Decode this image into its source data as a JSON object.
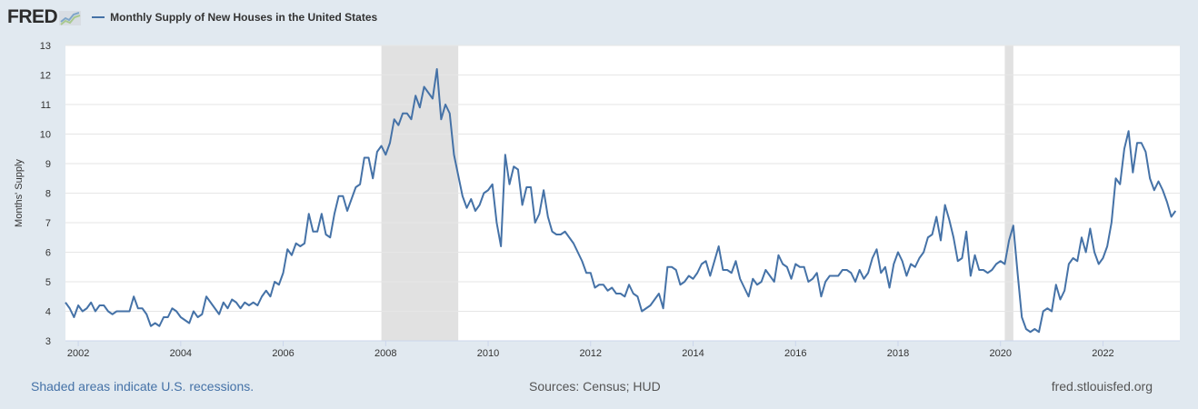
{
  "header": {
    "logo_text": "FRED",
    "legend_label": "Monthly Supply of New Houses in the United States"
  },
  "footer": {
    "recession_note": "Shaded areas indicate U.S. recessions.",
    "sources": "Sources: Census; HUD",
    "site": "fred.stlouisfed.org"
  },
  "colors": {
    "series": "#4572a7",
    "recession": "#e1e1e1",
    "background": "#e1e9f0",
    "plot_bg": "#ffffff",
    "grid": "#e6e6e6"
  },
  "chart_data": {
    "type": "line",
    "title": "",
    "xlabel": "",
    "ylabel": "Months' Supply",
    "xlim": [
      "2001-10-01",
      "2023-07-01"
    ],
    "ylim": [
      3,
      13
    ],
    "y_ticks": [
      3,
      4,
      5,
      6,
      7,
      8,
      9,
      10,
      11,
      12,
      13
    ],
    "x_ticks": [
      "2002",
      "2004",
      "2006",
      "2008",
      "2010",
      "2012",
      "2014",
      "2016",
      "2018",
      "2020",
      "2022"
    ],
    "grid": true,
    "legend_position": "top-left",
    "recessions": [
      {
        "start": "2007-12-01",
        "end": "2009-06-01"
      },
      {
        "start": "2020-02-01",
        "end": "2020-04-01"
      }
    ],
    "series": [
      {
        "name": "Monthly Supply of New Houses in the United States",
        "start": "2001-10-01",
        "frequency": "monthly",
        "values": [
          4.3,
          4.1,
          3.8,
          4.2,
          4.0,
          4.1,
          4.3,
          4.0,
          4.2,
          4.2,
          4.0,
          3.9,
          4.0,
          4.0,
          4.0,
          4.0,
          4.5,
          4.1,
          4.1,
          3.9,
          3.5,
          3.6,
          3.5,
          3.8,
          3.8,
          4.1,
          4.0,
          3.8,
          3.7,
          3.6,
          4.0,
          3.8,
          3.9,
          4.5,
          4.3,
          4.1,
          3.9,
          4.3,
          4.1,
          4.4,
          4.3,
          4.1,
          4.3,
          4.2,
          4.3,
          4.2,
          4.5,
          4.7,
          4.5,
          5.0,
          4.9,
          5.3,
          6.1,
          5.9,
          6.3,
          6.2,
          6.3,
          7.3,
          6.7,
          6.7,
          7.3,
          6.6,
          6.5,
          7.3,
          7.9,
          7.9,
          7.4,
          7.8,
          8.2,
          8.3,
          9.2,
          9.2,
          8.5,
          9.4,
          9.6,
          9.3,
          9.7,
          10.5,
          10.3,
          10.7,
          10.7,
          10.5,
          11.3,
          10.9,
          11.6,
          11.4,
          11.2,
          12.2,
          10.5,
          11.0,
          10.7,
          9.3,
          8.6,
          7.9,
          7.5,
          7.8,
          7.4,
          7.6,
          8.0,
          8.1,
          8.3,
          7.0,
          6.2,
          9.3,
          8.3,
          8.9,
          8.8,
          7.6,
          8.2,
          8.2,
          7.0,
          7.3,
          8.1,
          7.2,
          6.7,
          6.6,
          6.6,
          6.7,
          6.5,
          6.3,
          6.0,
          5.7,
          5.3,
          5.3,
          4.8,
          4.9,
          4.9,
          4.7,
          4.8,
          4.6,
          4.6,
          4.5,
          4.9,
          4.6,
          4.5,
          4.0,
          4.1,
          4.2,
          4.4,
          4.6,
          4.1,
          5.5,
          5.5,
          5.4,
          4.9,
          5.0,
          5.2,
          5.1,
          5.3,
          5.6,
          5.7,
          5.2,
          5.7,
          6.2,
          5.4,
          5.4,
          5.3,
          5.7,
          5.1,
          4.8,
          4.5,
          5.1,
          4.9,
          5.0,
          5.4,
          5.2,
          5.0,
          5.9,
          5.6,
          5.5,
          5.1,
          5.6,
          5.5,
          5.5,
          5.0,
          5.1,
          5.3,
          4.5,
          5.0,
          5.2,
          5.2,
          5.2,
          5.4,
          5.4,
          5.3,
          5.0,
          5.4,
          5.1,
          5.3,
          5.8,
          6.1,
          5.3,
          5.5,
          4.8,
          5.6,
          6.0,
          5.7,
          5.2,
          5.6,
          5.5,
          5.8,
          6.0,
          6.5,
          6.6,
          7.2,
          6.4,
          7.6,
          7.1,
          6.5,
          5.7,
          5.8,
          6.7,
          5.2,
          5.9,
          5.4,
          5.4,
          5.3,
          5.4,
          5.6,
          5.7,
          5.6,
          6.4,
          6.9,
          5.3,
          3.8,
          3.4,
          3.3,
          3.4,
          3.3,
          4.0,
          4.1,
          4.0,
          4.9,
          4.4,
          4.7,
          5.6,
          5.8,
          5.7,
          6.5,
          6.0,
          6.8,
          6.0,
          5.6,
          5.8,
          6.2,
          7.0,
          8.5,
          8.3,
          9.5,
          10.1,
          8.7,
          9.7,
          9.7,
          9.4,
          8.5,
          8.1,
          8.4,
          8.1,
          7.7,
          7.2,
          7.4
        ]
      }
    ]
  }
}
